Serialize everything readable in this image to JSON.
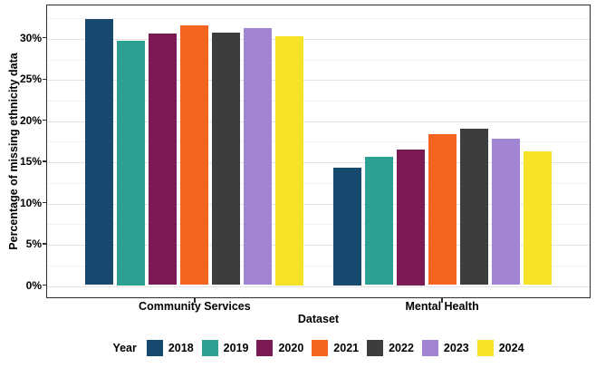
{
  "chart_data": {
    "type": "bar",
    "title": "",
    "xlabel": "Dataset",
    "ylabel": "Percentage of missing ethnicity data",
    "categories": [
      "Community Services",
      "Mental Health"
    ],
    "series": [
      {
        "name": "2018",
        "color": "#17486D",
        "values": [
          32.3,
          14.3
        ]
      },
      {
        "name": "2019",
        "color": "#2BA093",
        "values": [
          29.7,
          15.6
        ]
      },
      {
        "name": "2020",
        "color": "#7D1A55",
        "values": [
          30.5,
          16.5
        ]
      },
      {
        "name": "2021",
        "color": "#F3641F",
        "values": [
          31.5,
          18.3
        ]
      },
      {
        "name": "2022",
        "color": "#3D3D3D",
        "values": [
          30.6,
          19.0
        ]
      },
      {
        "name": "2023",
        "color": "#A285D2",
        "values": [
          31.2,
          17.8
        ]
      },
      {
        "name": "2024",
        "color": "#F6E226",
        "values": [
          30.2,
          16.2
        ]
      }
    ],
    "y_ticks": [
      {
        "value": 0,
        "label": "0%"
      },
      {
        "value": 5,
        "label": "5%"
      },
      {
        "value": 10,
        "label": "10%"
      },
      {
        "value": 15,
        "label": "15%"
      },
      {
        "value": 20,
        "label": "20%"
      },
      {
        "value": 25,
        "label": "25%"
      },
      {
        "value": 30,
        "label": "30%"
      }
    ],
    "ylim": [
      0,
      34
    ],
    "grid": "on",
    "legend_title": "Year",
    "legend_position": "bottom"
  }
}
